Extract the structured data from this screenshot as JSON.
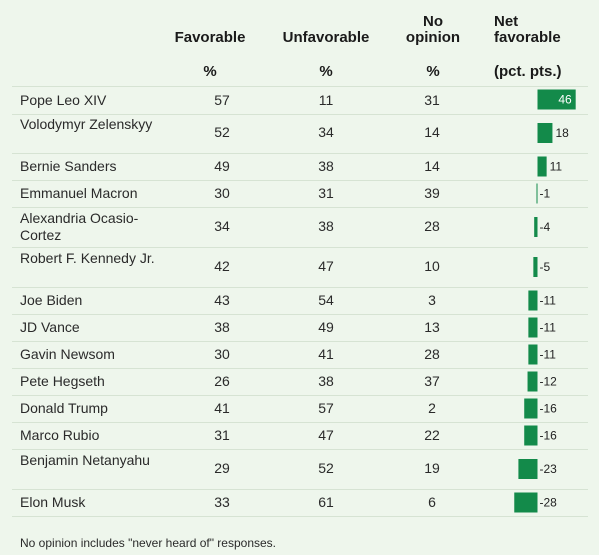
{
  "chart_data": {
    "type": "table",
    "columns": {
      "name": "",
      "favorable": "Favorable",
      "favorable_unit": "%",
      "unfavorable": "Unfavorable",
      "unfavorable_unit": "%",
      "no_opinion": "No opinion",
      "no_opinion_unit": "%",
      "net": "Net favorable",
      "net_unit": "(pct. pts.)"
    },
    "rows": [
      {
        "name": "Pope Leo XIV",
        "favorable": "57",
        "unfavorable": "11",
        "no_opinion": "31",
        "net": 46
      },
      {
        "name": "Volodymyr Zelenskyy",
        "favorable": "52",
        "unfavorable": "34",
        "no_opinion": "14",
        "net": 18
      },
      {
        "name": "Bernie Sanders",
        "favorable": "49",
        "unfavorable": "38",
        "no_opinion": "14",
        "net": 11
      },
      {
        "name": "Emmanuel Macron",
        "favorable": "30",
        "unfavorable": "31",
        "no_opinion": "39",
        "net": -1
      },
      {
        "name": "Alexandria Ocasio-Cortez",
        "favorable": "34",
        "unfavorable": "38",
        "no_opinion": "28",
        "net": -4
      },
      {
        "name": "Robert F. Kennedy Jr.",
        "favorable": "42",
        "unfavorable": "47",
        "no_opinion": "10",
        "net": -5
      },
      {
        "name": "Joe Biden",
        "favorable": "43",
        "unfavorable": "54",
        "no_opinion": "3",
        "net": -11
      },
      {
        "name": "JD Vance",
        "favorable": "38",
        "unfavorable": "49",
        "no_opinion": "13",
        "net": -11
      },
      {
        "name": "Gavin Newsom",
        "favorable": "30",
        "unfavorable": "41",
        "no_opinion": "28",
        "net": -11
      },
      {
        "name": "Pete Hegseth",
        "favorable": "26",
        "unfavorable": "38",
        "no_opinion": "37",
        "net": -12
      },
      {
        "name": "Donald Trump",
        "favorable": "41",
        "unfavorable": "57",
        "no_opinion": "2",
        "net": -16
      },
      {
        "name": "Marco Rubio",
        "favorable": "31",
        "unfavorable": "47",
        "no_opinion": "22",
        "net": -16
      },
      {
        "name": "Benjamin Netanyahu",
        "favorable": "29",
        "unfavorable": "52",
        "no_opinion": "19",
        "net": -23
      },
      {
        "name": "Elon Musk",
        "favorable": "33",
        "unfavorable": "61",
        "no_opinion": "6",
        "net": -28
      }
    ],
    "bar_color": "#138a4a",
    "footnote": "No opinion includes \"never heard of\" responses."
  }
}
